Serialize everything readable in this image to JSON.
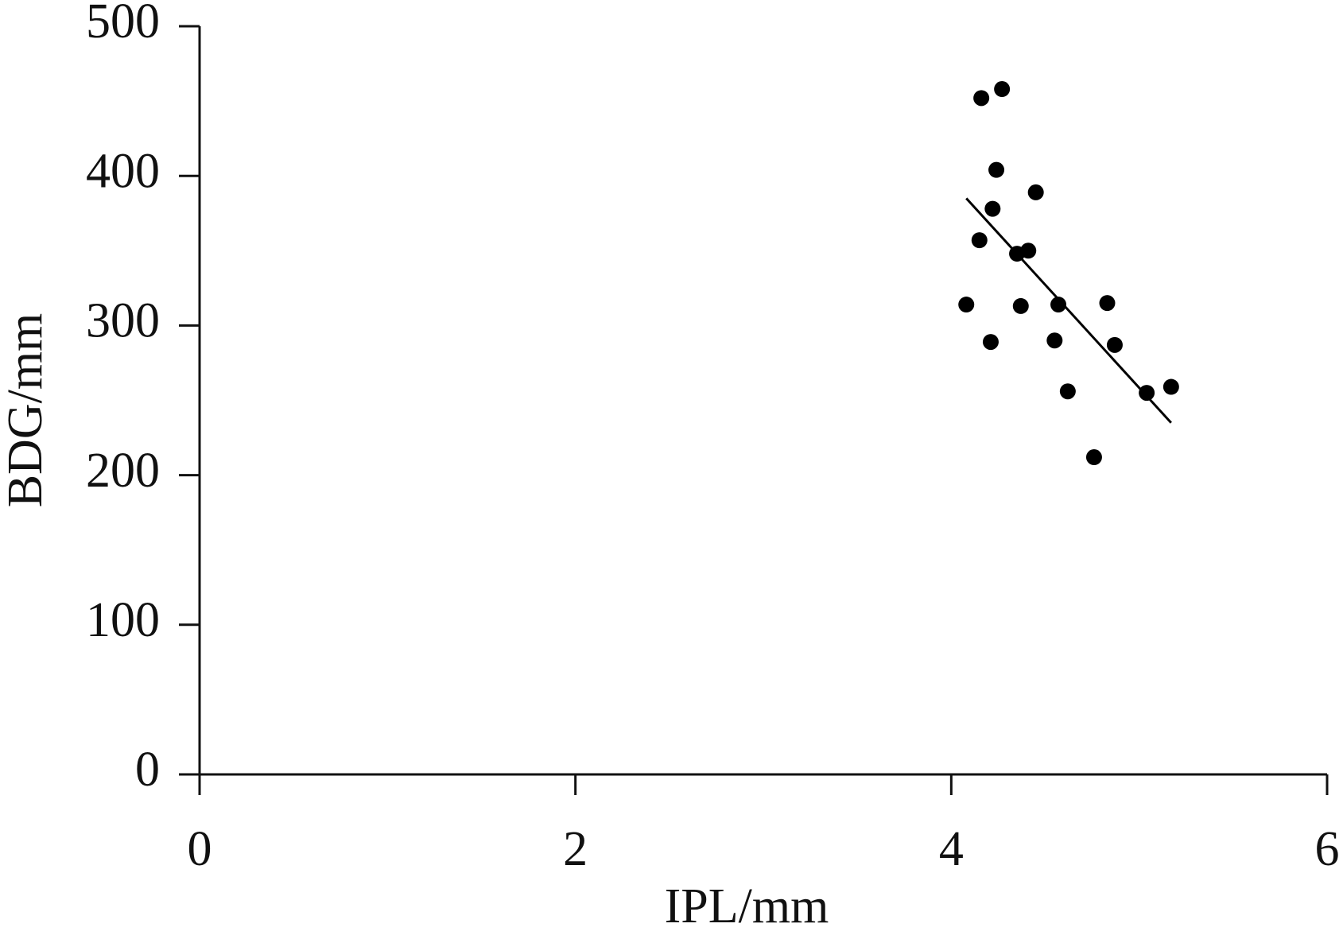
{
  "chart_data": {
    "type": "scatter",
    "x_label": "IPL/mm",
    "y_label": "BDG/mm",
    "x": [
      4.08,
      4.16,
      4.27,
      4.24,
      4.22,
      4.15,
      4.21,
      4.45,
      4.35,
      4.41,
      4.37,
      4.57,
      4.55,
      4.62,
      4.83,
      4.87,
      4.76,
      5.04,
      5.17
    ],
    "y": [
      314,
      452,
      458,
      404,
      378,
      357,
      289,
      389,
      348,
      350,
      313,
      314,
      290,
      256,
      315,
      287,
      212,
      255,
      259
    ],
    "color": "#000000",
    "trend_line": {
      "x": [
        4.08,
        5.17
      ],
      "y": [
        385,
        235
      ],
      "color": "#000000"
    },
    "xlim": [
      0,
      6
    ],
    "xticks": [
      0,
      2,
      4,
      6
    ],
    "ylim": [
      0,
      500
    ],
    "yticks": [
      0,
      100,
      200,
      300,
      400,
      500
    ]
  }
}
